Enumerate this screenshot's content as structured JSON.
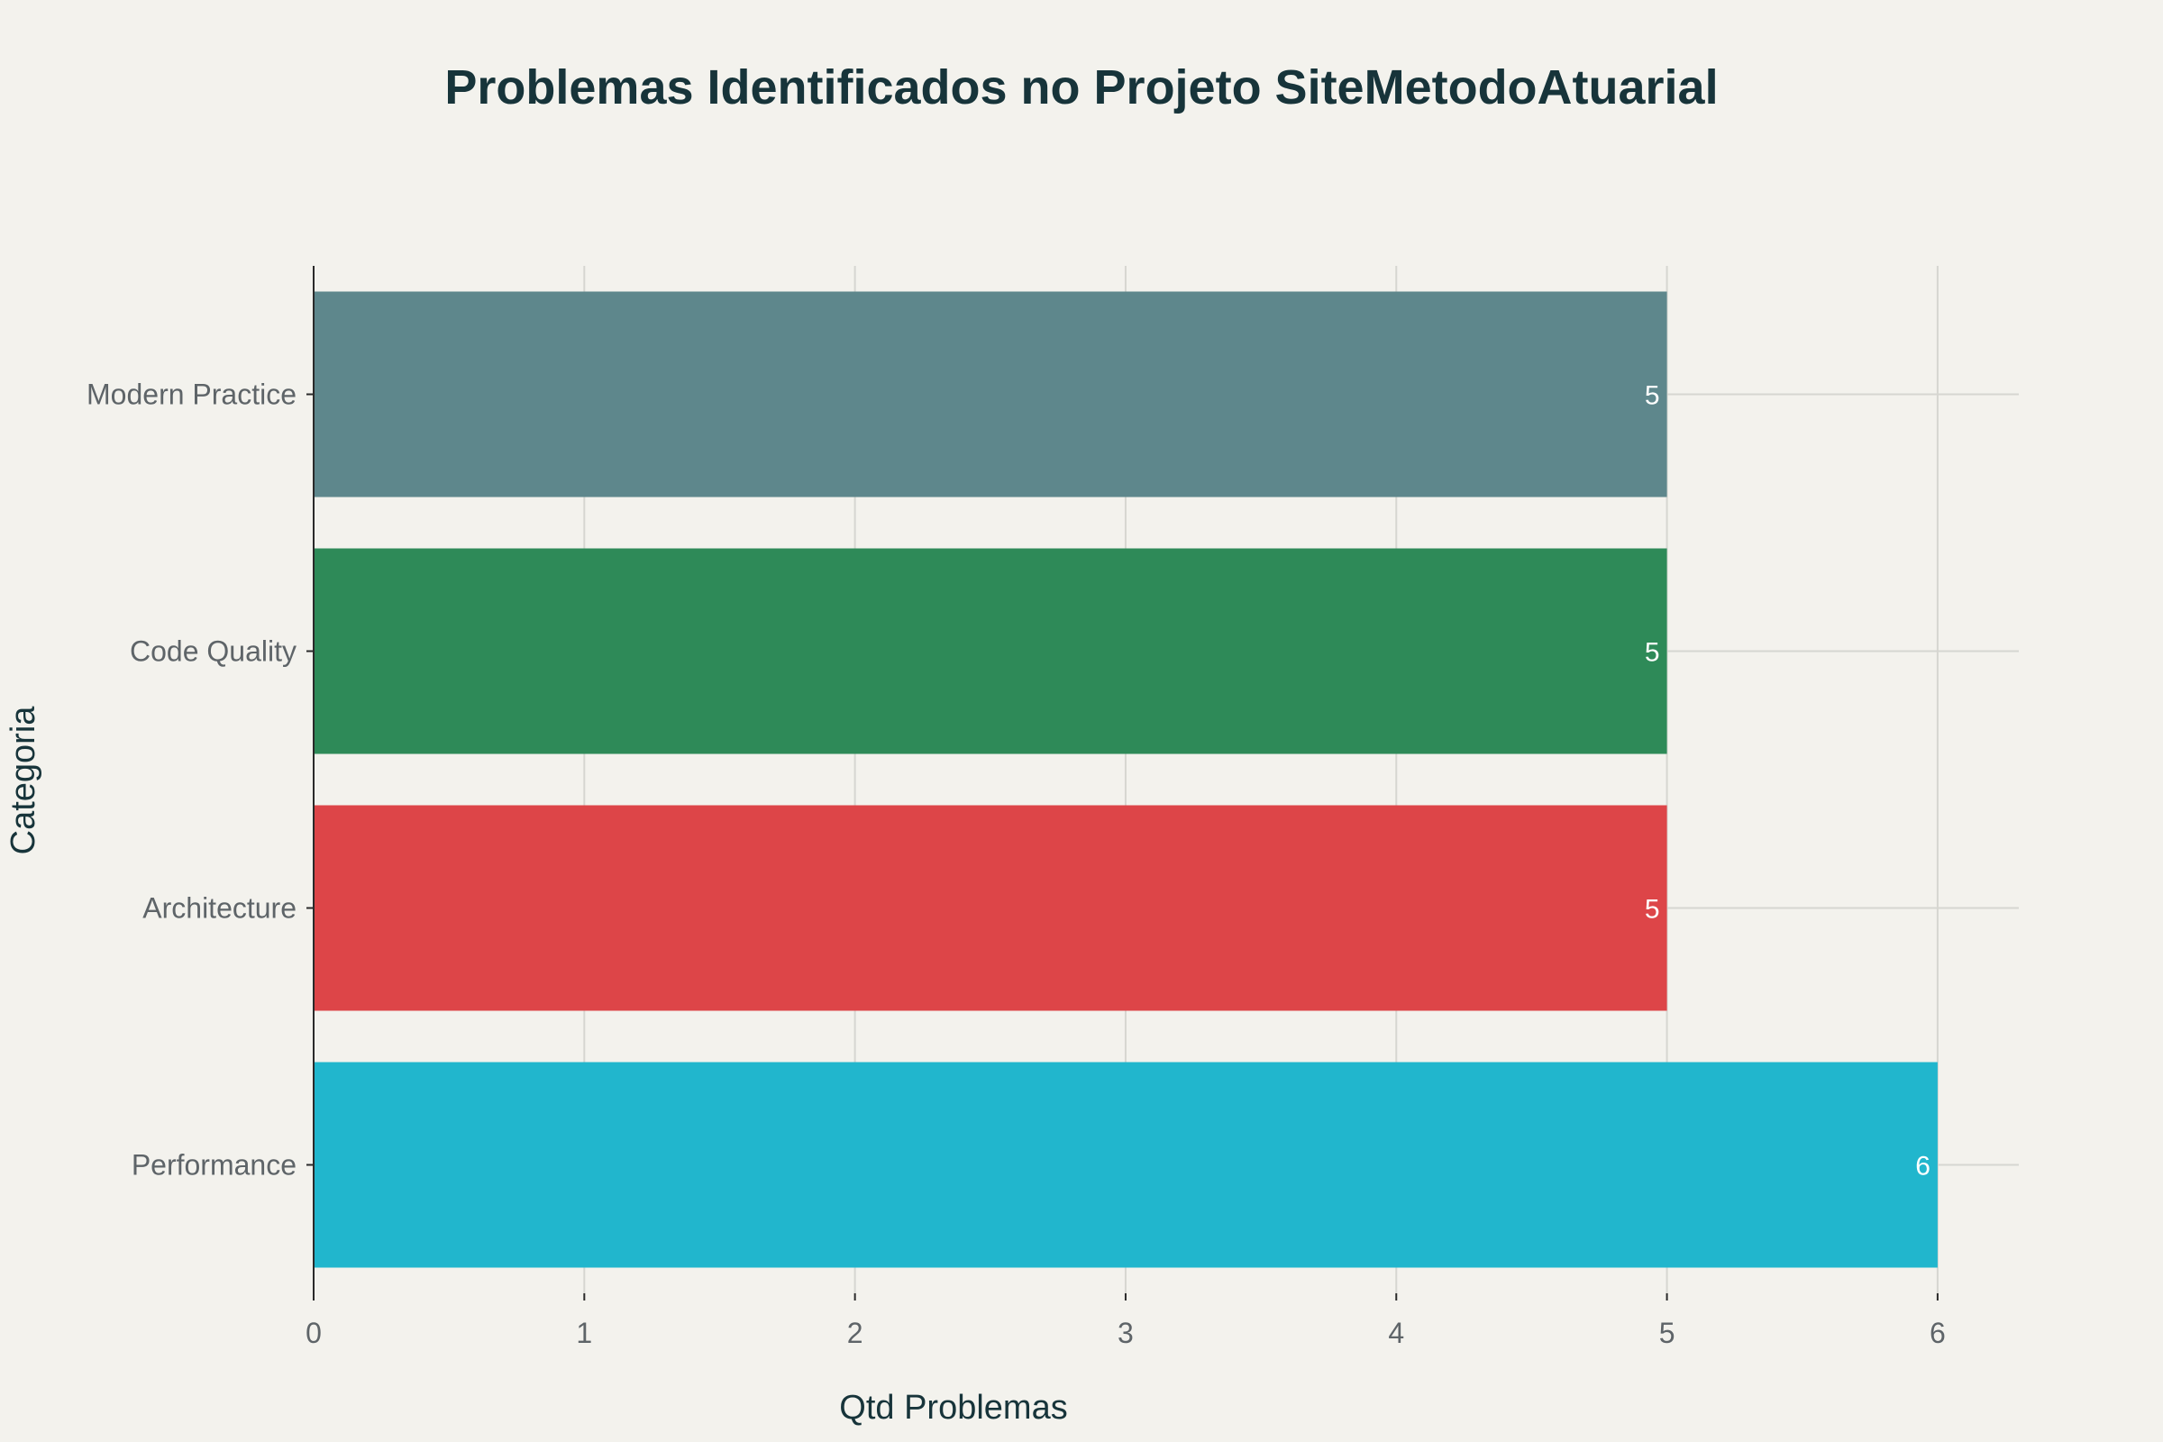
{
  "chart_data": {
    "type": "bar",
    "orientation": "horizontal",
    "title": "Problemas Identificados no Projeto SiteMetodoAtuarial",
    "xlabel": "Qtd Problemas",
    "ylabel": "Categoria",
    "categories": [
      "Performance",
      "Architecture",
      "Code Quality",
      "Modern Practice"
    ],
    "values": [
      6,
      5,
      5,
      5
    ],
    "colors": [
      "#21b6cd",
      "#dd4548",
      "#2e8a58",
      "#5e878c"
    ],
    "data_labels": [
      "6",
      "5",
      "5",
      "5"
    ],
    "xlim": [
      0,
      6.3
    ],
    "xticks": [
      0,
      1,
      2,
      3,
      4,
      5,
      6
    ],
    "xtick_labels": [
      "0",
      "1",
      "2",
      "3",
      "4",
      "5",
      "6"
    ],
    "grid": true,
    "legend": "none"
  }
}
